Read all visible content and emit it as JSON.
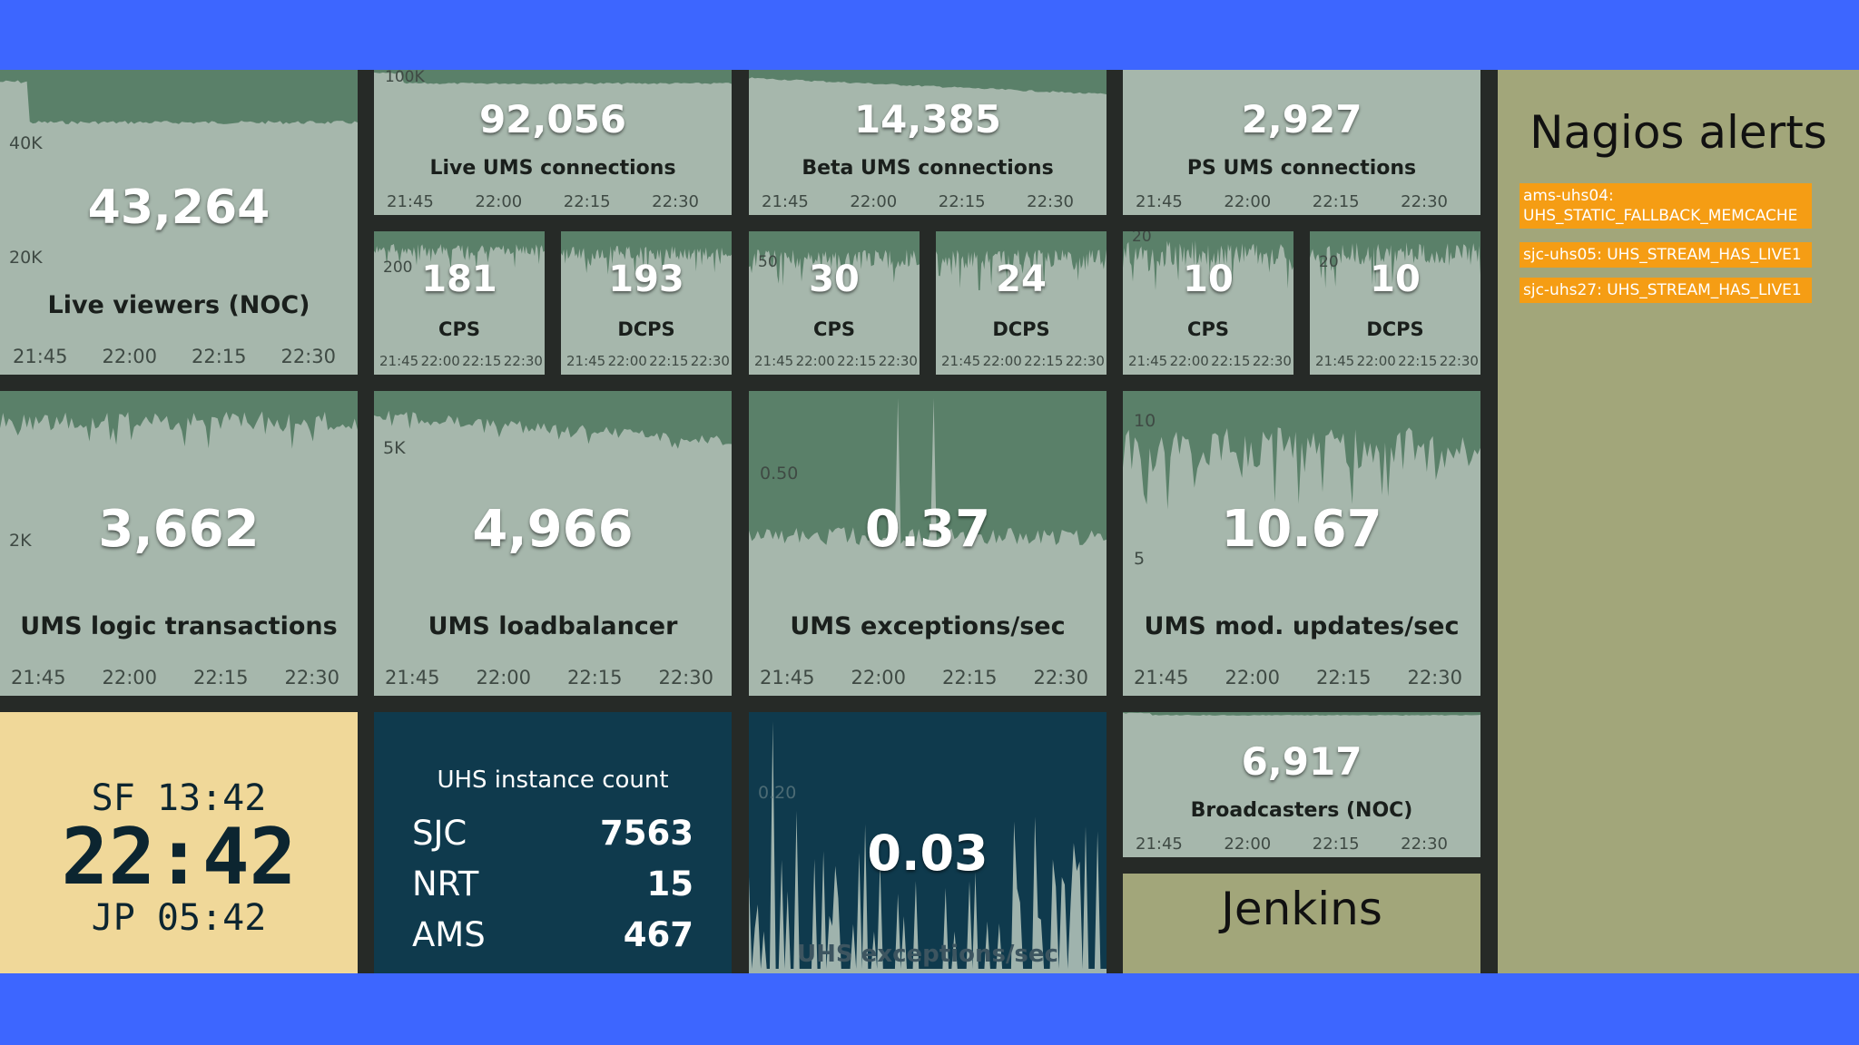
{
  "nagios": {
    "title": "Nagios alerts",
    "alerts": [
      "ams-uhs04: UHS_STATIC_FALLBACK_MEMCACHE",
      "sjc-uhs05: UHS_STREAM_HAS_LIVE1",
      "sjc-uhs27: UHS_STREAM_HAS_LIVE1"
    ]
  },
  "time_ticks": [
    "21:45",
    "22:00",
    "22:15",
    "22:30"
  ],
  "tiles": {
    "live_viewers": {
      "value": "43,264",
      "label": "Live viewers (NOC)",
      "y_ticks": [
        "40K",
        "20K"
      ]
    },
    "live_ums": {
      "value": "92,056",
      "label": "Live UMS connections",
      "y_ticks": [
        "100K"
      ]
    },
    "beta_ums": {
      "value": "14,385",
      "label": "Beta UMS connections"
    },
    "ps_ums": {
      "value": "2,927",
      "label": "PS UMS connections"
    },
    "live_cps": {
      "value": "181",
      "label": "CPS",
      "y_ticks": [
        "200"
      ]
    },
    "live_dcps": {
      "value": "193",
      "label": "DCPS"
    },
    "beta_cps": {
      "value": "30",
      "label": "CPS",
      "y_ticks": [
        "50"
      ]
    },
    "beta_dcps": {
      "value": "24",
      "label": "DCPS"
    },
    "ps_cps": {
      "value": "10",
      "label": "CPS",
      "y_ticks": [
        "20"
      ]
    },
    "ps_dcps": {
      "value": "10",
      "label": "DCPS",
      "y_ticks": [
        "20"
      ]
    },
    "ums_logic": {
      "value": "3,662",
      "label": "UMS logic transactions",
      "y_ticks": [
        "2K"
      ]
    },
    "ums_lb": {
      "value": "4,966",
      "label": "UMS loadbalancer",
      "y_ticks": [
        "5K"
      ]
    },
    "ums_exc": {
      "value": "0.37",
      "label": "UMS exceptions/sec",
      "y_ticks": [
        "0.50"
      ]
    },
    "ums_mod": {
      "value": "10.67",
      "label": "UMS mod. updates/sec",
      "y_ticks": [
        "10",
        "5"
      ]
    },
    "broadcasters": {
      "value": "6,917",
      "label": "Broadcasters (NOC)"
    },
    "uhs_exc": {
      "value": "0.03",
      "label": "UHS exceptions/sec",
      "y_ticks": [
        "0.20"
      ]
    }
  },
  "clock": {
    "sf": "SF 13:42",
    "main": "22:42",
    "jp": "JP 05:42"
  },
  "uhs_instances": {
    "title": "UHS instance count",
    "rows": [
      {
        "site": "SJC",
        "count": "7563"
      },
      {
        "site": "NRT",
        "count": "15"
      },
      {
        "site": "AMS",
        "count": "467"
      }
    ]
  },
  "jenkins": {
    "title": "Jenkins"
  },
  "colors": {
    "background": "#3d66ff",
    "tile": "#a6b7ac",
    "spark": "#5a8069",
    "alert": "#f59d14",
    "clock": "#f0d899",
    "dark_tile": "#0f3a4d",
    "panel": "#a2a67a"
  }
}
